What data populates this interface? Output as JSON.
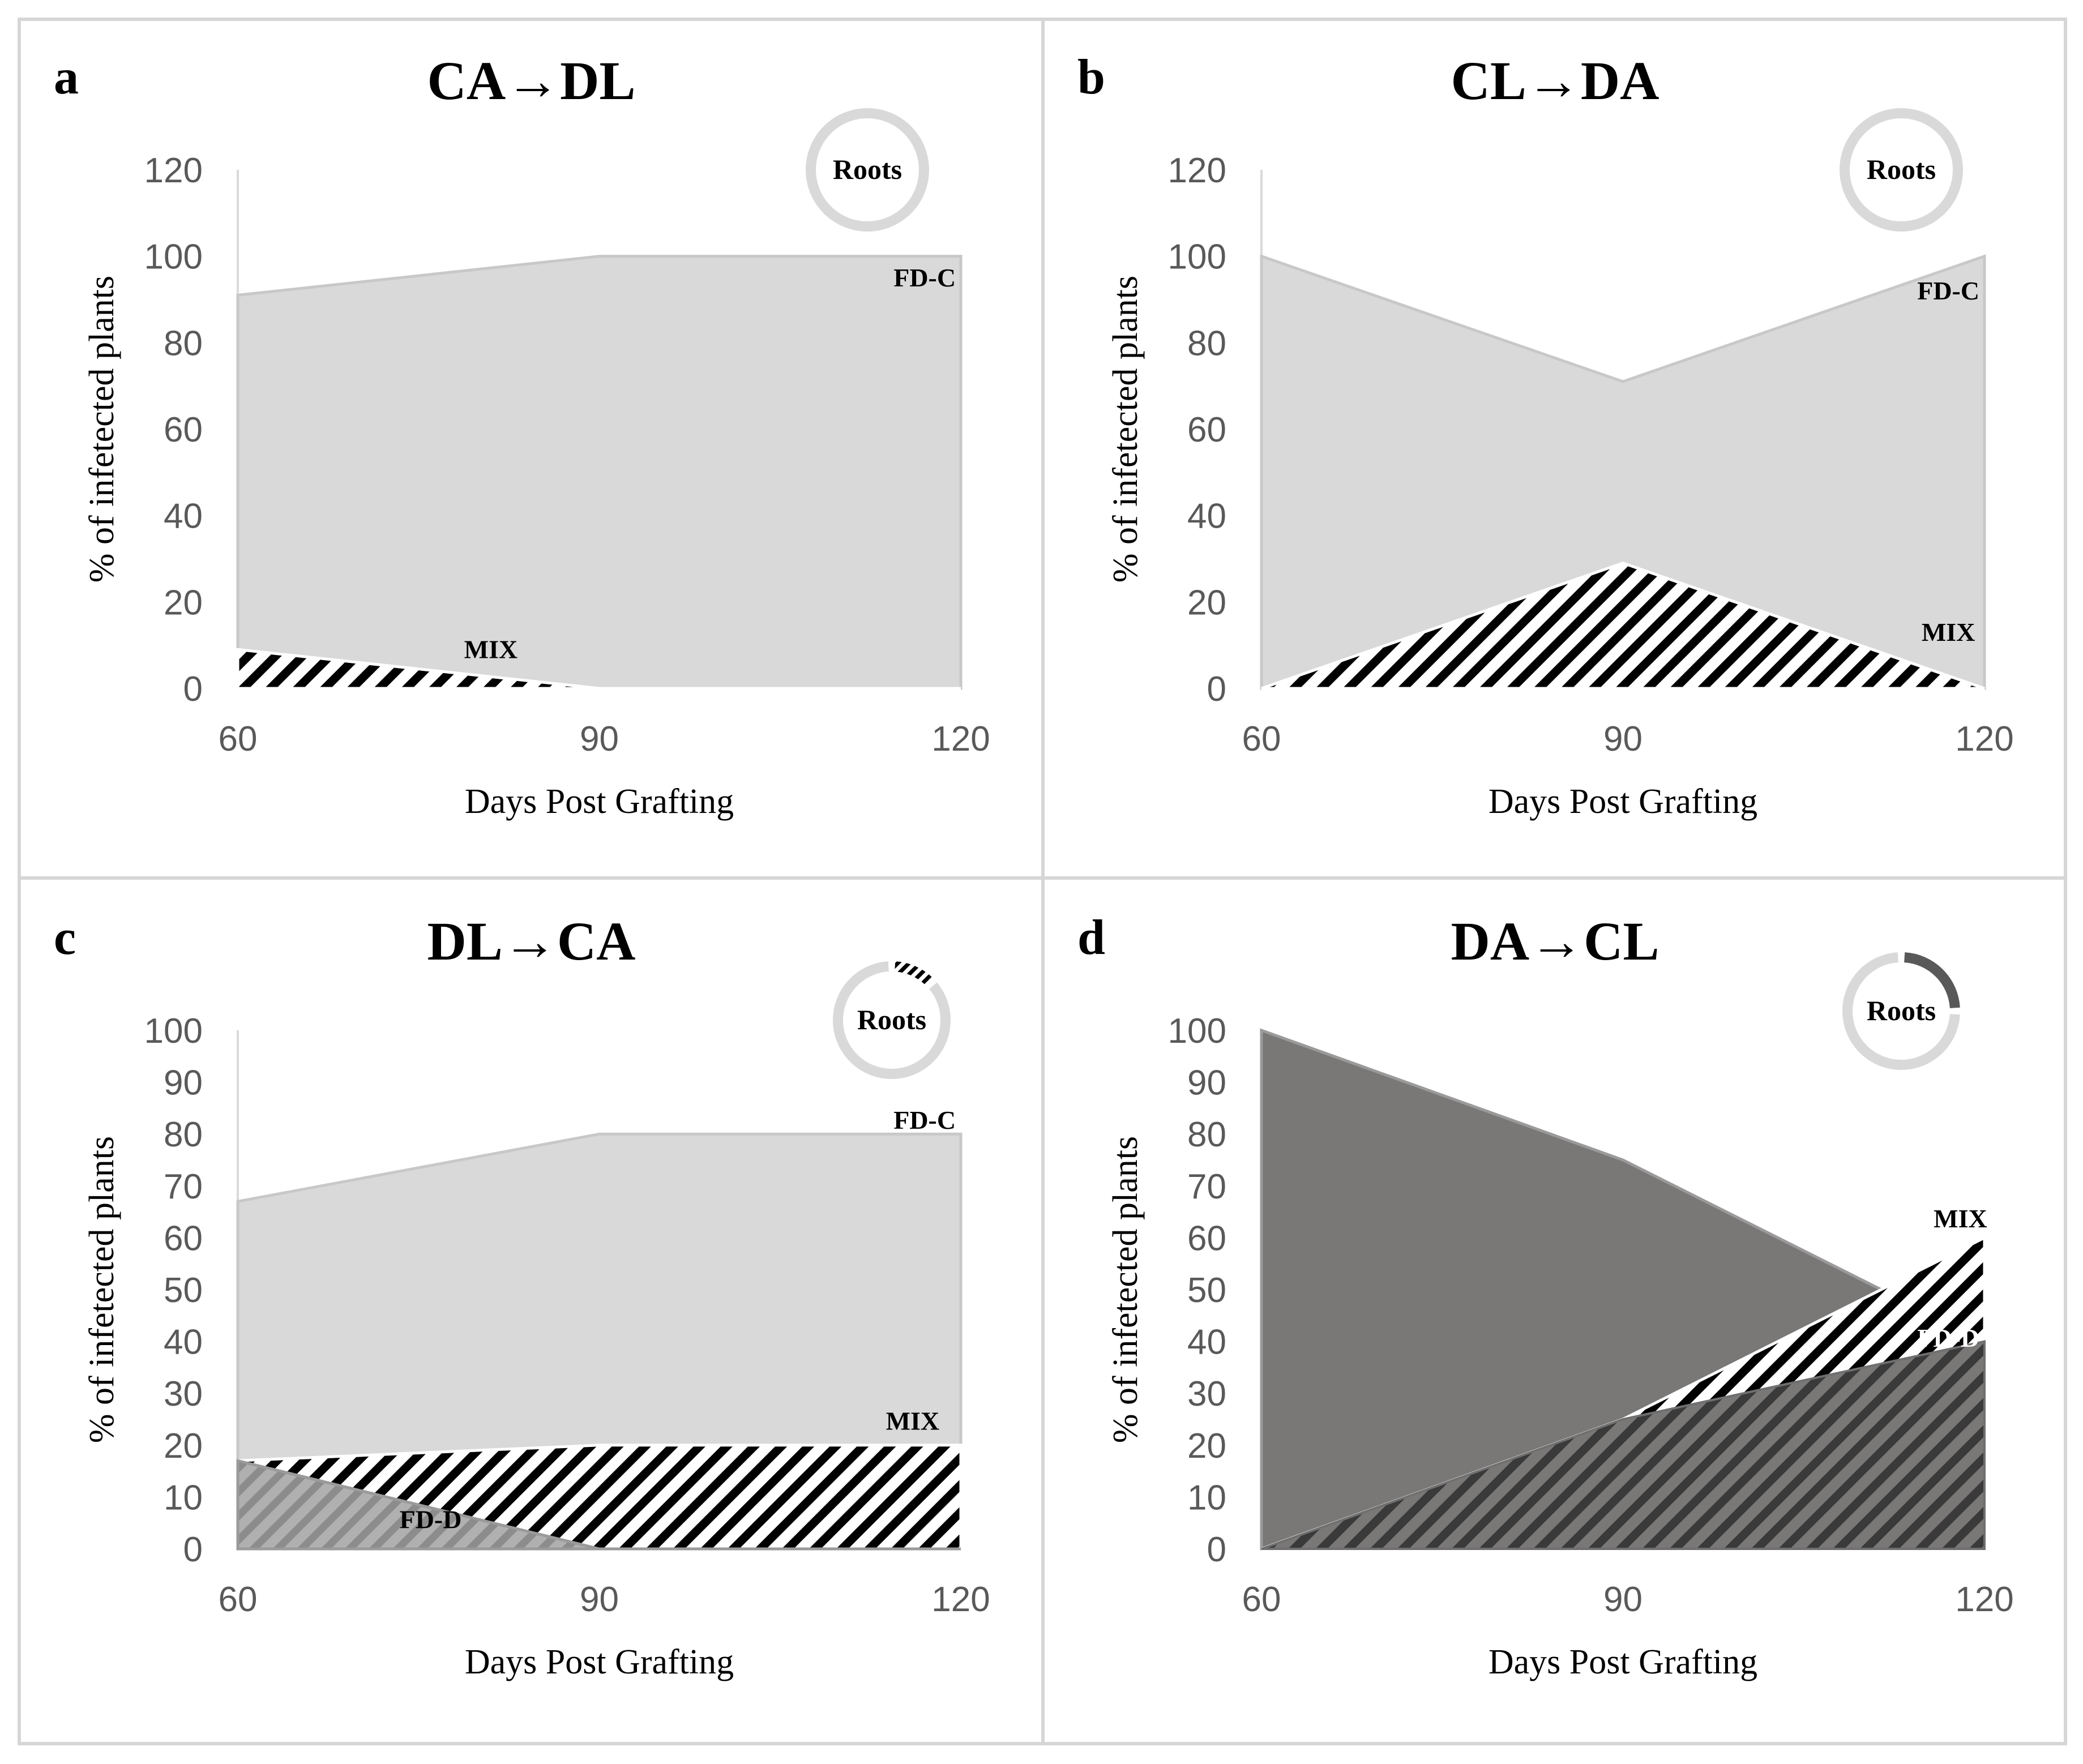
{
  "figure": {
    "colors": {
      "fdc": "#d9d9d9",
      "fdd_dark": "#7a7777",
      "fdd_grey": "#a3a3a3",
      "stripe": "#000000",
      "frame": "#d6d6d6",
      "axis_text": "#595959"
    }
  },
  "chart_data": [
    {
      "panel": "a",
      "type": "area",
      "title": "CA→DL",
      "title_parts": [
        "CA",
        "DL"
      ],
      "xlabel": "Days Post Grafting",
      "ylabel": "% of infetected  plants",
      "x": [
        60,
        90,
        120
      ],
      "ylim": [
        0,
        120
      ],
      "yticks": [
        0,
        20,
        40,
        60,
        80,
        100,
        120
      ],
      "series": [
        {
          "name": "FD-C",
          "pattern": "fdc",
          "values": [
            91,
            100,
            100
          ]
        },
        {
          "name": "MIX",
          "pattern": "mix",
          "values": [
            9,
            0,
            0
          ]
        }
      ],
      "labels": [
        {
          "text": "FD-C",
          "x": 117,
          "y": 93
        },
        {
          "text": "MIX",
          "x": 81,
          "y": 7
        }
      ],
      "roots_donut": {
        "label": "Roots",
        "segments": [
          {
            "name": "FD-C",
            "fraction": 1.0
          }
        ]
      }
    },
    {
      "panel": "b",
      "type": "area",
      "title": "CL→DA",
      "title_parts": [
        "CL",
        "DA"
      ],
      "xlabel": "Days Post Grafting",
      "ylabel": "% of infetected  plants",
      "x": [
        60,
        90,
        120
      ],
      "ylim": [
        0,
        120
      ],
      "yticks": [
        0,
        20,
        40,
        60,
        80,
        100,
        120
      ],
      "series": [
        {
          "name": "FD-C",
          "pattern": "fdc",
          "values": [
            100,
            71,
            100
          ]
        },
        {
          "name": "MIX",
          "pattern": "mix",
          "values": [
            0,
            29,
            0
          ]
        }
      ],
      "labels": [
        {
          "text": "FD-C",
          "x": 117,
          "y": 90
        },
        {
          "text": "MIX",
          "x": 117,
          "y": 11
        }
      ],
      "roots_donut": {
        "label": "Roots",
        "segments": [
          {
            "name": "FD-C",
            "fraction": 1.0
          }
        ]
      }
    },
    {
      "panel": "c",
      "type": "area",
      "title": "DL→CA",
      "title_parts": [
        "DL",
        "CA"
      ],
      "xlabel": "Days Post Grafting",
      "ylabel": "% of infetected  plants",
      "x": [
        60,
        90,
        120
      ],
      "ylim": [
        0,
        100
      ],
      "yticks": [
        0,
        10,
        20,
        30,
        40,
        50,
        60,
        70,
        80,
        90,
        100
      ],
      "series": [
        {
          "name": "FD-C",
          "pattern": "fdc",
          "values": [
            67,
            80,
            80
          ]
        },
        {
          "name": "MIX",
          "pattern": "mix",
          "values": [
            17,
            20,
            20
          ]
        },
        {
          "name": "FD-D",
          "pattern": "fdd_grey",
          "values": [
            17,
            0,
            0
          ]
        }
      ],
      "labels": [
        {
          "text": "FD-C",
          "x": 117,
          "y": 81
        },
        {
          "text": "MIX",
          "x": 116,
          "y": 23
        },
        {
          "text": "FD-D",
          "x": 76,
          "y": 4
        }
      ],
      "roots_donut": {
        "label": "Roots",
        "segments": [
          {
            "name": "MIX",
            "fraction": 0.13
          },
          {
            "name": "FD-C",
            "fraction": 0.87
          }
        ]
      }
    },
    {
      "panel": "d",
      "type": "area",
      "title": "DA→CL",
      "title_parts": [
        "DA",
        "CL"
      ],
      "xlabel": "Days Post Grafting",
      "ylabel": "% of infetected  plants",
      "x": [
        60,
        90,
        120
      ],
      "ylim": [
        0,
        100
      ],
      "yticks": [
        0,
        10,
        20,
        30,
        40,
        50,
        60,
        70,
        80,
        90,
        100
      ],
      "series": [
        {
          "name": "FD-D",
          "pattern": "fdd_dark",
          "values": [
            100,
            75,
            40
          ]
        },
        {
          "name": "MIX",
          "pattern": "mix",
          "values": [
            0,
            25,
            60
          ]
        }
      ],
      "labels": [
        {
          "text": "MIX",
          "x": 118,
          "y": 62
        },
        {
          "text": "FD-D",
          "x": 117,
          "y": 39
        }
      ],
      "roots_donut": {
        "label": "Roots",
        "segments": [
          {
            "name": "FD-D",
            "fraction": 0.25
          },
          {
            "name": "FD-C",
            "fraction": 0.75
          }
        ]
      }
    }
  ]
}
